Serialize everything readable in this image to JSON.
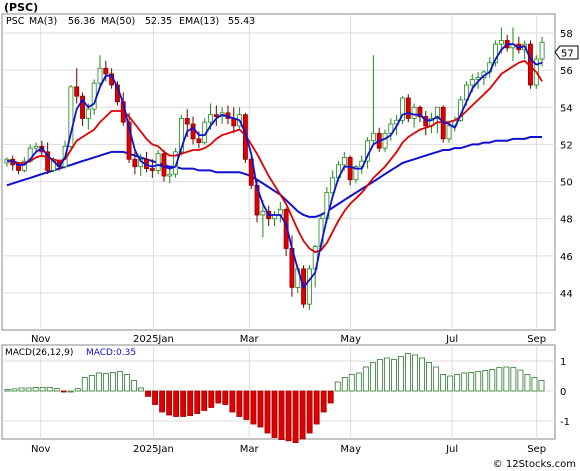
{
  "header": {
    "title": "(PSC)"
  },
  "legend": {
    "ticker": "PSC",
    "ma3_label": "MA(3)",
    "ma3_value": "56.36",
    "ma50_label": "MA(50)",
    "ma50_value": "52.35",
    "ema13_label": "EMA(13)",
    "ema13_value": "55.43"
  },
  "last_price_label": "57",
  "macd_legend": {
    "name": "MACD(26,12,9)",
    "value_label": "MACD:0.35"
  },
  "footer": {
    "copyright": "© 12Stocks.com"
  },
  "colors": {
    "up": "#1a8a1a",
    "down": "#e00000",
    "ma_blue": "#1010d0",
    "ema_red": "#e00000",
    "macd_pos": "#2a7a2a",
    "macd_neg": "#e00000",
    "grid": "#dddddd"
  },
  "chart_data": [
    {
      "type": "candlestick",
      "title": "(PSC)",
      "ylim": [
        42,
        59
      ],
      "y_ticks": [
        "44",
        "46",
        "48",
        "50",
        "52",
        "54",
        "56",
        "58"
      ],
      "x_ticks": [
        "Nov",
        "2025Jan",
        "Mar",
        "May",
        "Jul",
        "Sep"
      ],
      "grid": true,
      "candles": [
        [
          51.0,
          51.3,
          50.8,
          51.2
        ],
        [
          51.2,
          51.4,
          50.6,
          50.9
        ],
        [
          50.9,
          51.0,
          50.4,
          50.6
        ],
        [
          50.6,
          51.3,
          50.5,
          51.1
        ],
        [
          51.1,
          52.0,
          51.0,
          51.8
        ],
        [
          51.8,
          52.1,
          51.5,
          51.9
        ],
        [
          51.9,
          52.2,
          51.3,
          51.6
        ],
        [
          51.6,
          52.1,
          50.4,
          50.6
        ],
        [
          50.6,
          51.3,
          50.5,
          51.1
        ],
        [
          51.1,
          51.2,
          50.6,
          50.8
        ],
        [
          50.8,
          52.2,
          50.7,
          51.9
        ],
        [
          51.9,
          55.2,
          51.8,
          55.1
        ],
        [
          55.1,
          56.1,
          54.2,
          54.6
        ],
        [
          54.6,
          54.8,
          53.0,
          53.4
        ],
        [
          53.4,
          54.2,
          52.8,
          53.9
        ],
        [
          53.9,
          55.5,
          53.6,
          55.3
        ],
        [
          55.3,
          56.8,
          55.0,
          56.1
        ],
        [
          56.1,
          56.5,
          55.4,
          55.8
        ],
        [
          55.8,
          56.1,
          55.0,
          55.2
        ],
        [
          55.2,
          55.4,
          54.1,
          54.3
        ],
        [
          54.3,
          54.8,
          53.0,
          53.2
        ],
        [
          53.2,
          53.7,
          51.0,
          51.2
        ],
        [
          51.2,
          51.6,
          50.4,
          50.8
        ],
        [
          50.8,
          51.5,
          50.3,
          51.2
        ],
        [
          51.2,
          51.6,
          50.5,
          50.7
        ],
        [
          50.7,
          51.2,
          50.2,
          50.6
        ],
        [
          50.6,
          51.7,
          50.4,
          51.5
        ],
        [
          51.5,
          51.7,
          50.0,
          50.3
        ],
        [
          50.3,
          50.7,
          49.9,
          50.4
        ],
        [
          50.4,
          51.8,
          50.2,
          51.6
        ],
        [
          51.6,
          53.6,
          51.4,
          53.4
        ],
        [
          53.4,
          53.9,
          52.4,
          53.1
        ],
        [
          53.1,
          53.5,
          52.0,
          52.3
        ],
        [
          52.3,
          52.7,
          51.8,
          52.1
        ],
        [
          52.1,
          53.4,
          52.0,
          53.2
        ],
        [
          53.2,
          54.2,
          52.8,
          53.6
        ],
        [
          53.6,
          54.1,
          53.0,
          53.5
        ],
        [
          53.5,
          54.0,
          53.1,
          53.7
        ],
        [
          53.7,
          54.1,
          53.1,
          53.4
        ],
        [
          53.4,
          54.0,
          52.6,
          53.0
        ],
        [
          53.0,
          54.0,
          52.8,
          53.6
        ],
        [
          53.6,
          53.7,
          51.0,
          51.2
        ],
        [
          51.2,
          51.3,
          49.6,
          49.8
        ],
        [
          49.8,
          50.1,
          47.8,
          48.2
        ],
        [
          48.2,
          49.0,
          47.0,
          48.4
        ],
        [
          48.4,
          48.7,
          47.6,
          48.0
        ],
        [
          48.0,
          48.4,
          47.6,
          48.2
        ],
        [
          48.2,
          48.9,
          47.8,
          48.5
        ],
        [
          48.5,
          48.6,
          46.0,
          46.4
        ],
        [
          46.4,
          47.1,
          43.8,
          44.3
        ],
        [
          44.3,
          45.4,
          44.0,
          45.3
        ],
        [
          45.3,
          45.5,
          43.2,
          43.4
        ],
        [
          43.4,
          45.5,
          43.1,
          45.3
        ],
        [
          45.3,
          46.6,
          44.3,
          46.5
        ],
        [
          46.5,
          48.2,
          46.3,
          48.0
        ],
        [
          48.0,
          49.7,
          47.8,
          49.4
        ],
        [
          49.4,
          50.6,
          49.2,
          50.2
        ],
        [
          50.2,
          51.1,
          50.0,
          50.9
        ],
        [
          50.9,
          51.6,
          50.6,
          51.3
        ],
        [
          51.3,
          51.4,
          49.8,
          50.1
        ],
        [
          50.1,
          50.9,
          49.9,
          50.8
        ],
        [
          50.8,
          51.4,
          50.4,
          51.1
        ],
        [
          51.1,
          52.4,
          50.7,
          52.2
        ],
        [
          52.2,
          56.8,
          52.0,
          52.6
        ],
        [
          52.6,
          52.9,
          51.6,
          51.8
        ],
        [
          51.8,
          52.8,
          51.6,
          52.6
        ],
        [
          52.6,
          53.4,
          52.2,
          53.1
        ],
        [
          53.1,
          53.6,
          52.5,
          53.3
        ],
        [
          53.3,
          54.6,
          53.1,
          54.5
        ],
        [
          54.5,
          54.7,
          53.2,
          53.4
        ],
        [
          53.4,
          54.2,
          52.9,
          54.0
        ],
        [
          54.0,
          54.1,
          53.2,
          53.5
        ],
        [
          53.5,
          53.8,
          52.5,
          53.0
        ],
        [
          53.0,
          53.7,
          52.6,
          53.4
        ],
        [
          53.4,
          54.0,
          52.6,
          54.0
        ],
        [
          54.0,
          54.1,
          52.1,
          52.3
        ],
        [
          52.3,
          53.2,
          52.1,
          53.0
        ],
        [
          53.0,
          53.5,
          52.7,
          53.3
        ],
        [
          53.3,
          54.6,
          53.2,
          54.4
        ],
        [
          54.4,
          55.4,
          54.1,
          55.2
        ],
        [
          55.2,
          55.8,
          54.8,
          55.5
        ],
        [
          55.5,
          55.9,
          55.0,
          55.6
        ],
        [
          55.6,
          56.0,
          55.2,
          55.9
        ],
        [
          55.9,
          56.7,
          55.6,
          56.4
        ],
        [
          56.4,
          57.6,
          56.2,
          57.4
        ],
        [
          57.4,
          58.3,
          56.9,
          57.6
        ],
        [
          57.6,
          57.9,
          57.0,
          57.2
        ],
        [
          57.2,
          58.3,
          56.5,
          57.4
        ],
        [
          57.4,
          57.8,
          56.9,
          57.1
        ],
        [
          57.1,
          57.6,
          56.6,
          57.4
        ],
        [
          57.4,
          57.6,
          55.0,
          55.2
        ],
        [
          55.2,
          56.8,
          55.0,
          56.6
        ],
        [
          56.6,
          57.8,
          56.2,
          57.5
        ]
      ],
      "ma3": [
        51.1,
        51.1,
        50.9,
        50.9,
        51.2,
        51.6,
        51.8,
        51.4,
        51.1,
        50.8,
        51.3,
        52.6,
        53.9,
        54.4,
        54.0,
        54.2,
        55.1,
        55.7,
        55.7,
        55.1,
        54.2,
        52.9,
        51.7,
        51.1,
        50.9,
        50.8,
        50.9,
        50.8,
        50.7,
        50.8,
        51.8,
        52.7,
        52.9,
        52.5,
        52.5,
        53.0,
        53.4,
        53.6,
        53.5,
        53.4,
        53.3,
        52.6,
        51.5,
        49.7,
        48.8,
        48.2,
        48.2,
        48.2,
        47.7,
        46.4,
        45.3,
        44.3,
        44.7,
        45.1,
        46.6,
        48.0,
        49.2,
        50.2,
        50.8,
        50.8,
        50.7,
        50.7,
        51.4,
        52.0,
        52.2,
        52.3,
        52.5,
        53.0,
        53.6,
        53.7,
        53.6,
        53.6,
        53.3,
        53.3,
        53.5,
        53.2,
        53.1,
        52.9,
        53.6,
        54.3,
        55.0,
        55.4,
        55.7,
        55.9,
        56.6,
        57.1,
        57.4,
        57.4,
        57.2,
        57.3,
        56.6,
        56.3,
        56.4
      ],
      "ema13": [
        51.1,
        51.1,
        51.0,
        51.0,
        51.1,
        51.3,
        51.4,
        51.3,
        51.2,
        51.1,
        51.2,
        51.7,
        52.2,
        52.4,
        52.6,
        52.8,
        53.2,
        53.5,
        53.8,
        53.8,
        53.8,
        53.5,
        53.1,
        52.7,
        52.3,
        52.0,
        51.9,
        51.6,
        51.4,
        51.4,
        51.5,
        51.6,
        51.7,
        51.7,
        51.8,
        52.0,
        52.3,
        52.5,
        52.6,
        52.7,
        52.8,
        52.5,
        52.0,
        51.5,
        50.9,
        50.3,
        49.8,
        49.3,
        48.8,
        48.1,
        47.4,
        46.8,
        46.4,
        46.2,
        46.3,
        46.7,
        47.3,
        47.9,
        48.4,
        48.8,
        49.1,
        49.4,
        49.8,
        50.2,
        50.5,
        50.8,
        51.2,
        51.6,
        52.1,
        52.4,
        52.6,
        52.8,
        52.9,
        53.0,
        53.2,
        53.2,
        53.2,
        53.3,
        53.5,
        53.8,
        54.1,
        54.4,
        54.7,
        55.0,
        55.4,
        55.8,
        56.0,
        56.2,
        56.4,
        56.5,
        56.2,
        55.9,
        55.4
      ],
      "ma50": [
        49.8,
        49.9,
        50.0,
        50.1,
        50.2,
        50.3,
        50.4,
        50.5,
        50.6,
        50.7,
        50.8,
        50.9,
        51.0,
        51.1,
        51.2,
        51.3,
        51.4,
        51.5,
        51.6,
        51.6,
        51.6,
        51.5,
        51.4,
        51.3,
        51.2,
        51.1,
        51.0,
        50.9,
        50.8,
        50.8,
        50.7,
        50.7,
        50.7,
        50.6,
        50.6,
        50.6,
        50.5,
        50.5,
        50.5,
        50.5,
        50.5,
        50.4,
        50.3,
        50.1,
        49.9,
        49.7,
        49.5,
        49.3,
        49.0,
        48.7,
        48.4,
        48.2,
        48.1,
        48.1,
        48.2,
        48.4,
        48.6,
        48.8,
        49.0,
        49.2,
        49.4,
        49.6,
        49.8,
        50.0,
        50.2,
        50.4,
        50.6,
        50.8,
        51.0,
        51.1,
        51.2,
        51.3,
        51.4,
        51.5,
        51.6,
        51.7,
        51.7,
        51.8,
        51.8,
        51.9,
        52.0,
        52.0,
        52.1,
        52.1,
        52.2,
        52.2,
        52.2,
        52.3,
        52.3,
        52.3,
        52.4,
        52.4,
        52.4
      ]
    },
    {
      "type": "bar",
      "title": "MACD(26,12,9)",
      "ylim": [
        -1.8,
        1.8
      ],
      "y_ticks": [
        "1",
        "0",
        "-1"
      ],
      "x_ticks": [
        "Nov",
        "2025Jan",
        "Mar",
        "May",
        "Jul",
        "Sep"
      ],
      "values": [
        0.05,
        0.07,
        0.1,
        0.1,
        0.12,
        0.12,
        0.12,
        0.08,
        -0.02,
        0.0,
        0.08,
        0.45,
        0.52,
        0.6,
        0.58,
        0.62,
        0.65,
        0.55,
        0.35,
        0.1,
        -0.18,
        -0.45,
        -0.7,
        -0.8,
        -0.85,
        -0.85,
        -0.82,
        -0.75,
        -0.65,
        -0.55,
        -0.4,
        -0.45,
        -0.7,
        -0.85,
        -0.95,
        -1.1,
        -1.2,
        -1.4,
        -1.55,
        -1.62,
        -1.66,
        -1.72,
        -1.6,
        -1.4,
        -1.1,
        -0.7,
        -0.4,
        0.3,
        0.45,
        0.55,
        0.6,
        0.8,
        0.95,
        1.05,
        1.1,
        1.05,
        1.15,
        1.25,
        1.2,
        1.1,
        0.95,
        0.8,
        0.55,
        0.5,
        0.55,
        0.6,
        0.62,
        0.65,
        0.68,
        0.72,
        0.78,
        0.8,
        0.78,
        0.7,
        0.55,
        0.45,
        0.35
      ]
    }
  ]
}
